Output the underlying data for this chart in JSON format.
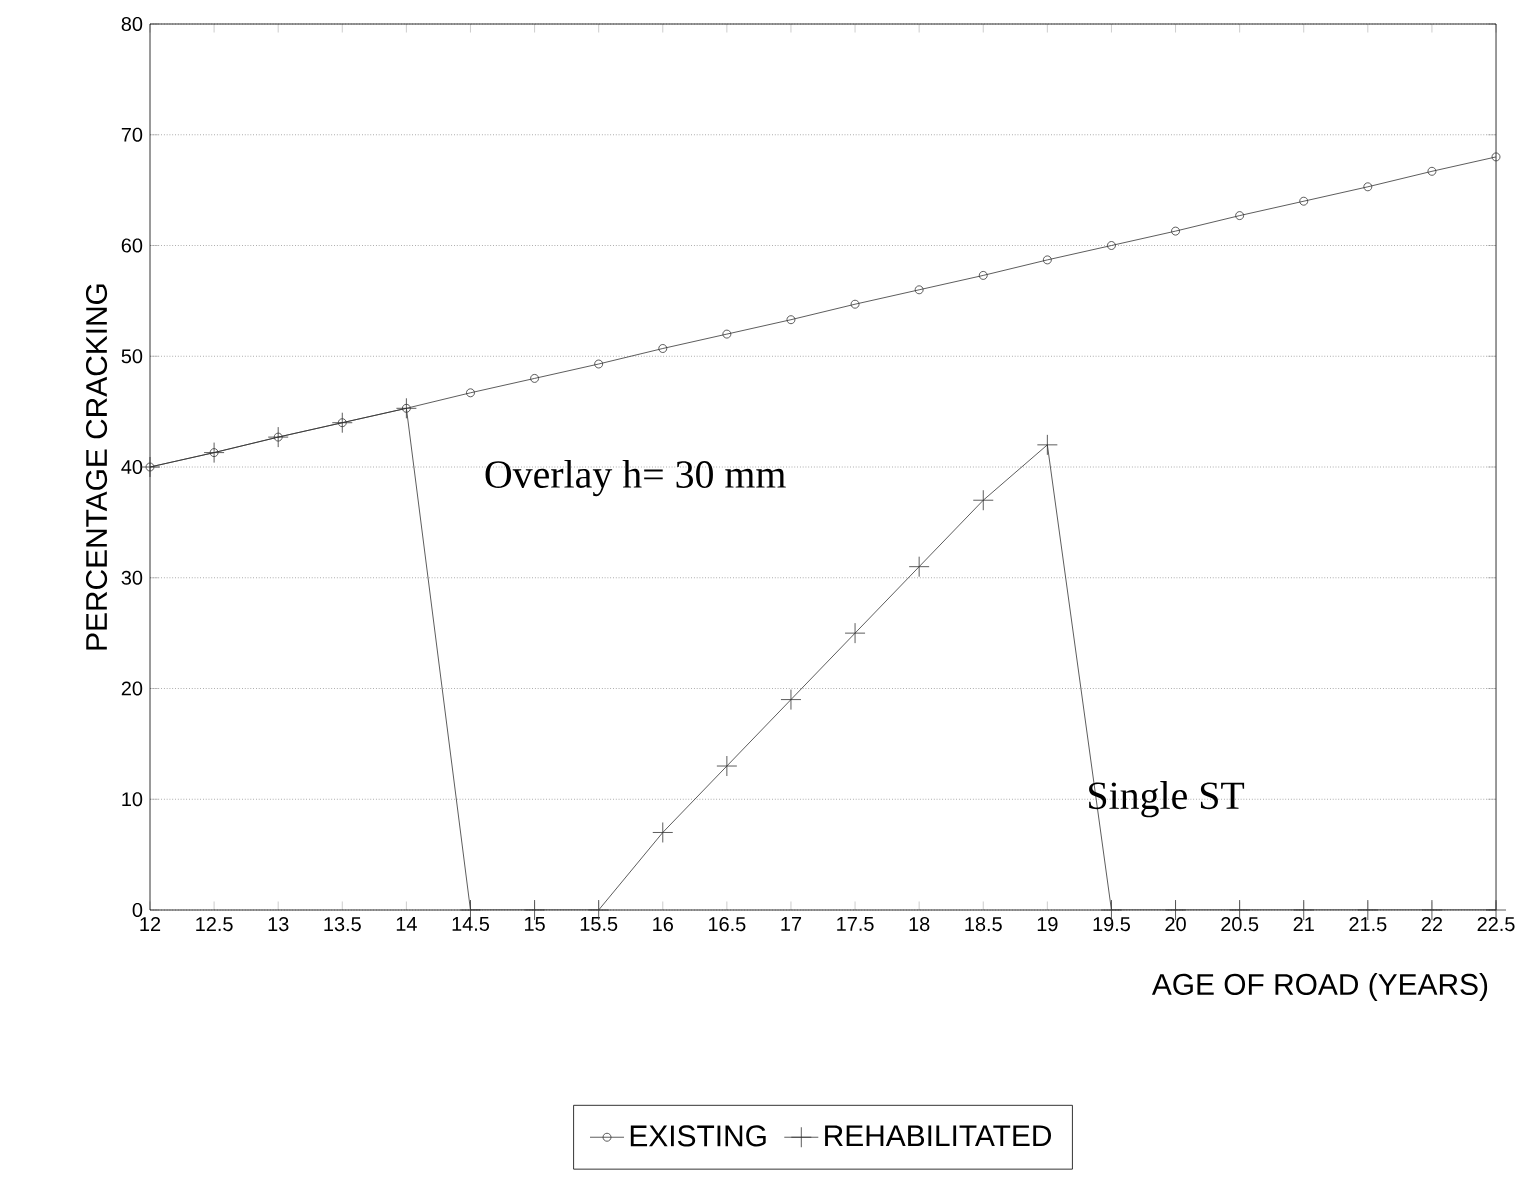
{
  "chart_data": {
    "type": "line",
    "xlabel": "AGE OF ROAD (YEARS)",
    "ylabel": "PERCENTAGE CRACKING",
    "x": [
      12,
      12.5,
      13,
      13.5,
      14,
      14.5,
      15,
      15.5,
      16,
      16.5,
      17,
      17.5,
      18,
      18.5,
      19,
      19.5,
      20,
      20.5,
      21,
      21.5,
      22,
      22.5
    ],
    "series": [
      {
        "name": "EXISTING",
        "color": "#333333",
        "marker": "circle",
        "values": [
          40,
          41.3,
          42.7,
          44,
          45.3,
          46.7,
          48,
          49.3,
          50.7,
          52,
          53.3,
          54.7,
          56,
          57.3,
          58.7,
          60,
          61.3,
          62.7,
          64,
          65.3,
          66.7,
          68
        ]
      },
      {
        "name": "REHABILITATED",
        "color": "#333333",
        "marker": "cross",
        "values": [
          40,
          41.3,
          42.7,
          44,
          45.3,
          0,
          0,
          0,
          7,
          13,
          19,
          25,
          31,
          37,
          42,
          0,
          0,
          0,
          0,
          0,
          0,
          0
        ]
      }
    ],
    "xlim": [
      12,
      22.5
    ],
    "ylim": [
      0,
      80
    ],
    "xticks": [
      12,
      12.5,
      13,
      13.5,
      14,
      14.5,
      15,
      15.5,
      16,
      16.5,
      17,
      17.5,
      18,
      18.5,
      19,
      19.5,
      20,
      20.5,
      21,
      21.5,
      22,
      22.5
    ],
    "yticks": [
      0,
      10,
      20,
      30,
      40,
      50,
      60,
      70,
      80
    ],
    "grid": "y",
    "legend": "bottom",
    "line_style": "solid",
    "annotations": [
      "Overlay h= 30 mm",
      "Single ST"
    ]
  }
}
